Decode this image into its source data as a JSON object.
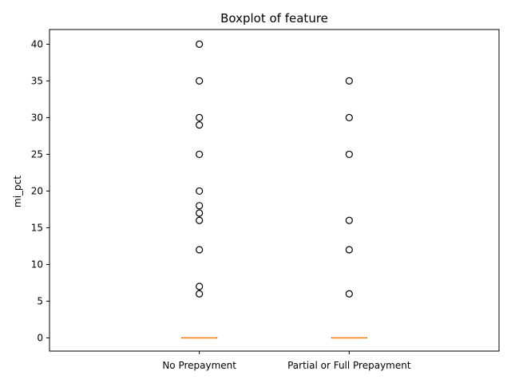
{
  "chart_data": {
    "type": "boxplot",
    "title": "Boxplot of feature",
    "xlabel": "",
    "ylabel": "mi_pct",
    "ylim": [
      -1.8,
      42
    ],
    "yticks": [
      0,
      5,
      10,
      15,
      20,
      25,
      30,
      35,
      40
    ],
    "categories": [
      "No Prepayment",
      "Partial or Full Prepayment"
    ],
    "boxes": [
      {
        "category": "No Prepayment",
        "q1": 0,
        "median": 0,
        "q3": 0,
        "whisker_low": 0,
        "whisker_high": 0,
        "outliers": [
          6,
          7,
          12,
          16,
          17,
          18,
          20,
          25,
          29,
          30,
          35,
          40
        ]
      },
      {
        "category": "Partial or Full Prepayment",
        "q1": 0,
        "median": 0,
        "q3": 0,
        "whisker_low": 0,
        "whisker_high": 0,
        "outliers": [
          6,
          12,
          16,
          25,
          30,
          35
        ]
      }
    ],
    "grid": false,
    "colors": {
      "median": "#ff7f0e",
      "box": "#000000",
      "outlier_edge": "#000000"
    }
  }
}
